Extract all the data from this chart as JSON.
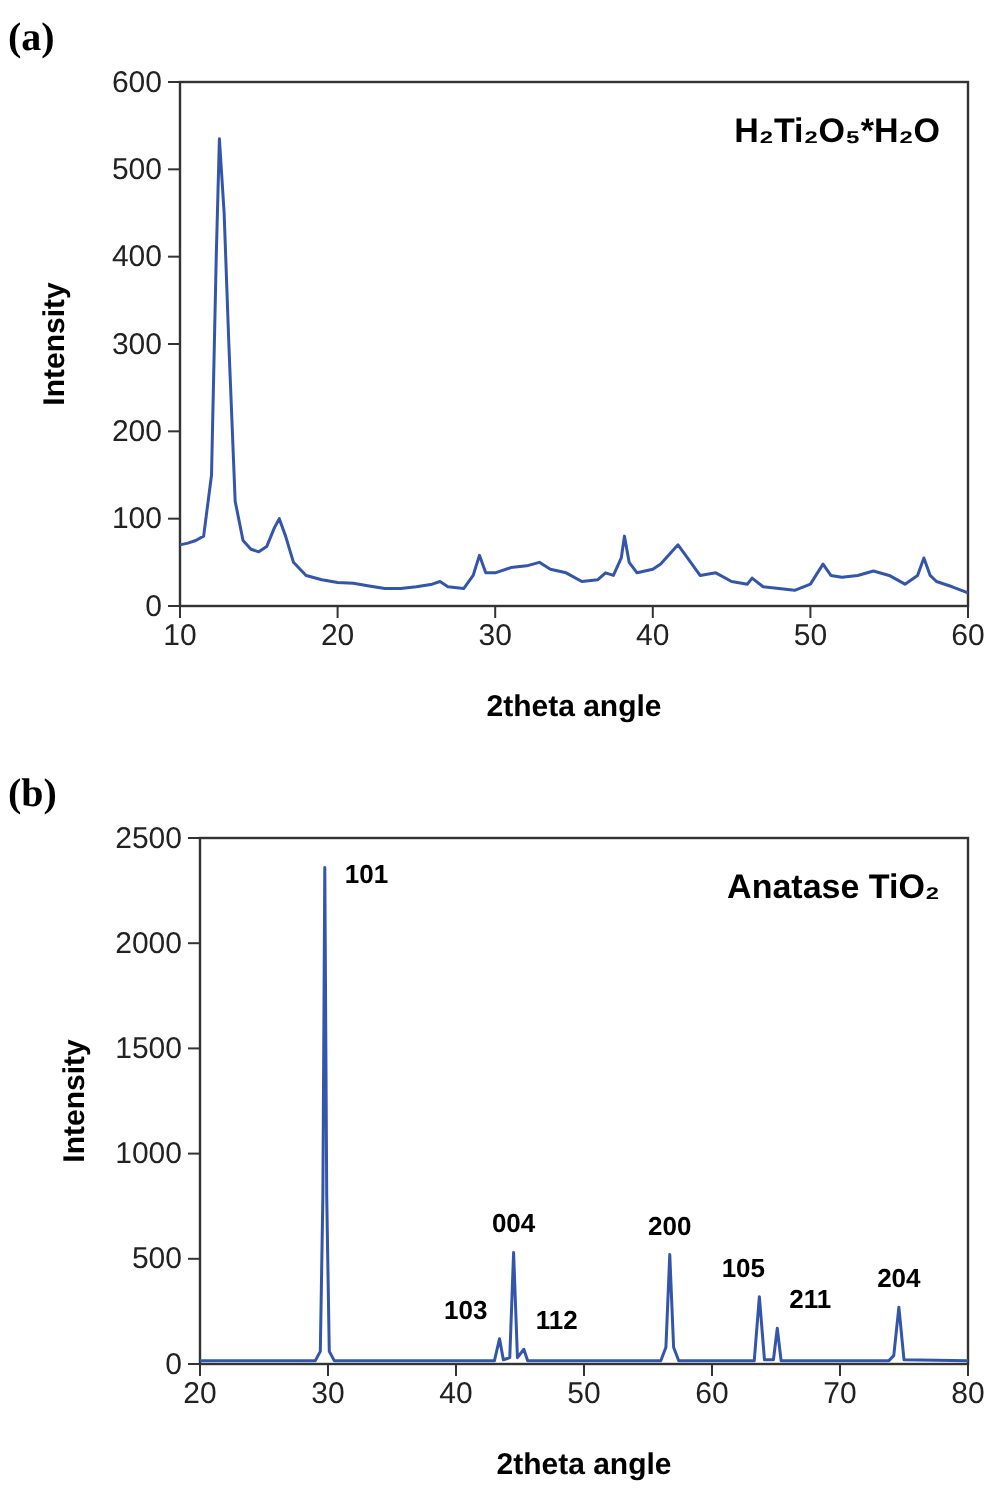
{
  "chart_data": [
    {
      "type": "line",
      "title": "(a)",
      "xlabel": "2theta angle",
      "ylabel": "Intensity",
      "xlim": [
        10,
        60
      ],
      "xticks": [
        10,
        20,
        30,
        40,
        50,
        60
      ],
      "ylim": [
        0,
        600
      ],
      "yticks": [
        0,
        100,
        200,
        300,
        400,
        500,
        600
      ],
      "grid": false,
      "marker": "none",
      "line_style": "solid",
      "annotations": [
        "H₂Ti₂O₅*H₂O"
      ],
      "series": [
        {
          "color": "#3355aa",
          "x": [
            10,
            10.5,
            11,
            11.5,
            12,
            12.3,
            12.5,
            12.8,
            13.1,
            13.5,
            14,
            14.5,
            15,
            15.5,
            16,
            16.3,
            16.7,
            17.2,
            18,
            19,
            20,
            21,
            22,
            23,
            24,
            25,
            26,
            26.5,
            27,
            28,
            28.6,
            29,
            29.4,
            30,
            31,
            32,
            32.8,
            33.5,
            34.5,
            35.5,
            36.5,
            37,
            37.5,
            38,
            38.2,
            38.5,
            39,
            40,
            40.5,
            41,
            41.6,
            42.2,
            43,
            44,
            45,
            46,
            46.3,
            47,
            48,
            49,
            50,
            50.8,
            51.3,
            52,
            53,
            54,
            55,
            56,
            56.8,
            57.2,
            57.6,
            58,
            59,
            60
          ],
          "values": [
            70,
            72,
            75,
            80,
            150,
            400,
            535,
            450,
            300,
            120,
            75,
            65,
            62,
            68,
            90,
            100,
            80,
            50,
            35,
            30,
            27,
            26,
            23,
            20,
            20,
            22,
            25,
            28,
            22,
            20,
            35,
            58,
            38,
            38,
            44,
            46,
            50,
            42,
            38,
            28,
            30,
            38,
            35,
            55,
            80,
            50,
            38,
            42,
            48,
            58,
            70,
            55,
            35,
            38,
            28,
            25,
            32,
            22,
            20,
            18,
            25,
            48,
            35,
            33,
            35,
            40,
            35,
            25,
            35,
            55,
            35,
            28,
            22,
            15
          ]
        }
      ]
    },
    {
      "type": "line",
      "title": "(b)",
      "xlabel": "2theta angle",
      "ylabel": "Intensity",
      "xlim": [
        20,
        80
      ],
      "xticks": [
        20,
        30,
        40,
        50,
        60,
        70,
        80
      ],
      "ylim": [
        0,
        2500
      ],
      "yticks": [
        0,
        500,
        1000,
        1500,
        2000,
        2500
      ],
      "grid": false,
      "marker": "none",
      "line_style": "solid",
      "annotations": [
        "Anatase TiO₂",
        {
          "text": "101",
          "x": 29.75,
          "y": 2360
        },
        {
          "text": "103",
          "x": 43.4,
          "y": 120
        },
        {
          "text": "004",
          "x": 44.5,
          "y": 530
        },
        {
          "text": "112",
          "x": 45.3,
          "y": 70
        },
        {
          "text": "200",
          "x": 56.7,
          "y": 520
        },
        {
          "text": "105",
          "x": 63.7,
          "y": 320
        },
        {
          "text": "211",
          "x": 65.1,
          "y": 170
        },
        {
          "text": "204",
          "x": 74.6,
          "y": 270
        }
      ],
      "series": [
        {
          "color": "#3355aa",
          "x": [
            20,
            29,
            29.4,
            29.6,
            29.75,
            29.9,
            30.1,
            30.5,
            43,
            43.4,
            43.7,
            44.2,
            44.5,
            44.8,
            45.3,
            45.6,
            56,
            56.4,
            56.7,
            57,
            57.4,
            63.3,
            63.7,
            64.1,
            64.8,
            65.1,
            65.4,
            73.8,
            74.2,
            74.6,
            75,
            80
          ],
          "values": [
            15,
            15,
            60,
            800,
            2360,
            800,
            60,
            15,
            15,
            120,
            20,
            30,
            530,
            30,
            70,
            15,
            15,
            80,
            520,
            80,
            15,
            15,
            320,
            20,
            20,
            170,
            15,
            15,
            40,
            270,
            20,
            15
          ]
        }
      ]
    }
  ]
}
